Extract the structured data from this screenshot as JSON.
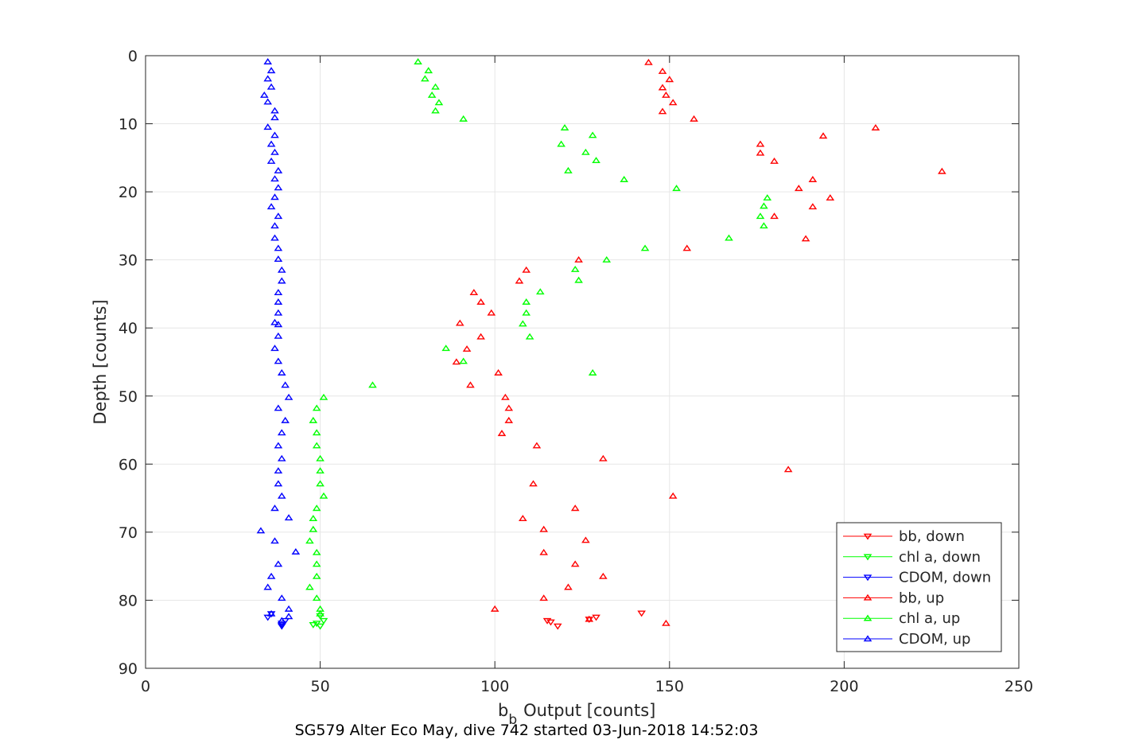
{
  "chart_data": {
    "type": "scatter",
    "title": "",
    "caption": "SG579 Alter Eco May, dive 742 started 03-Jun-2018 14:52:03",
    "xlabel_main": "b",
    "xlabel_sub": "b",
    "xlabel_rest": "Output [counts]",
    "ylabel": "Depth [counts]",
    "xlim": [
      0,
      250
    ],
    "ylim": [
      0,
      90
    ],
    "y_reversed": true,
    "grid": true,
    "legend_position": "bottom-right",
    "x_ticks": [
      "0",
      "50",
      "100",
      "150",
      "200",
      "250"
    ],
    "x_tick_values": [
      0,
      50,
      100,
      150,
      200,
      250
    ],
    "y_ticks": [
      "0",
      "10",
      "20",
      "30",
      "40",
      "50",
      "60",
      "70",
      "80",
      "90"
    ],
    "y_tick_values": [
      0,
      10,
      20,
      30,
      40,
      50,
      60,
      70,
      80,
      90
    ],
    "series": [
      {
        "name": "bb, down",
        "color": "#ff0000",
        "marker": "triangle-down",
        "points": [
          [
            115,
            83.0
          ],
          [
            116,
            83.2
          ],
          [
            118,
            83.8
          ],
          [
            129,
            82.5
          ],
          [
            142,
            81.9
          ],
          [
            127,
            82.8
          ]
        ]
      },
      {
        "name": "chl a, down",
        "color": "#00ff00",
        "marker": "triangle-down",
        "points": [
          [
            49,
            83.4
          ],
          [
            50,
            83.8
          ],
          [
            51,
            83.0
          ],
          [
            48,
            83.6
          ],
          [
            50,
            82.3
          ]
        ]
      },
      {
        "name": "CDOM, down",
        "color": "#0000ff",
        "marker": "triangle-down",
        "points": [
          [
            35,
            82.5
          ],
          [
            39,
            83.4
          ],
          [
            39,
            83.8
          ],
          [
            40,
            83.0
          ],
          [
            36,
            82.0
          ],
          [
            39,
            83.6
          ]
        ]
      },
      {
        "name": "bb, up",
        "color": "#ff0000",
        "marker": "triangle-up",
        "points": [
          [
            144,
            1.0
          ],
          [
            148,
            2.3
          ],
          [
            150,
            3.5
          ],
          [
            148,
            4.7
          ],
          [
            149,
            5.8
          ],
          [
            151,
            6.9
          ],
          [
            148,
            8.2
          ],
          [
            157,
            9.3
          ],
          [
            209,
            10.6
          ],
          [
            194,
            11.8
          ],
          [
            176,
            13.0
          ],
          [
            176,
            14.3
          ],
          [
            180,
            15.5
          ],
          [
            228,
            17.0
          ],
          [
            191,
            18.2
          ],
          [
            187,
            19.5
          ],
          [
            196,
            20.9
          ],
          [
            191,
            22.2
          ],
          [
            180,
            23.6
          ],
          [
            189,
            26.9
          ],
          [
            155,
            28.3
          ],
          [
            124,
            30.0
          ],
          [
            109,
            31.5
          ],
          [
            107,
            33.1
          ],
          [
            94,
            34.8
          ],
          [
            96,
            36.2
          ],
          [
            99,
            37.8
          ],
          [
            90,
            39.3
          ],
          [
            96,
            41.3
          ],
          [
            92,
            43.1
          ],
          [
            89,
            45.0
          ],
          [
            101,
            46.6
          ],
          [
            93,
            48.4
          ],
          [
            103,
            50.2
          ],
          [
            104,
            51.8
          ],
          [
            104,
            53.6
          ],
          [
            102,
            55.5
          ],
          [
            112,
            57.3
          ],
          [
            131,
            59.2
          ],
          [
            184,
            60.8
          ],
          [
            111,
            62.9
          ],
          [
            151,
            64.7
          ],
          [
            123,
            66.5
          ],
          [
            108,
            68.0
          ],
          [
            114,
            69.6
          ],
          [
            126,
            71.2
          ],
          [
            114,
            73.0
          ],
          [
            123,
            74.7
          ],
          [
            131,
            76.5
          ],
          [
            121,
            78.1
          ],
          [
            114,
            79.7
          ],
          [
            100,
            81.3
          ],
          [
            149,
            83.4
          ],
          [
            127,
            82.8
          ]
        ]
      },
      {
        "name": "chl a, up",
        "color": "#00ff00",
        "marker": "triangle-up",
        "points": [
          [
            78,
            0.9
          ],
          [
            81,
            2.2
          ],
          [
            80,
            3.4
          ],
          [
            83,
            4.6
          ],
          [
            82,
            5.8
          ],
          [
            84,
            6.9
          ],
          [
            83,
            8.1
          ],
          [
            91,
            9.3
          ],
          [
            120,
            10.6
          ],
          [
            128,
            11.7
          ],
          [
            119,
            13.0
          ],
          [
            126,
            14.2
          ],
          [
            129,
            15.4
          ],
          [
            121,
            16.9
          ],
          [
            137,
            18.2
          ],
          [
            152,
            19.5
          ],
          [
            178,
            20.9
          ],
          [
            177,
            22.1
          ],
          [
            176,
            23.6
          ],
          [
            177,
            25.0
          ],
          [
            167,
            26.8
          ],
          [
            143,
            28.3
          ],
          [
            132,
            30.0
          ],
          [
            123,
            31.4
          ],
          [
            124,
            33.0
          ],
          [
            113,
            34.7
          ],
          [
            109,
            36.2
          ],
          [
            109,
            37.8
          ],
          [
            108,
            39.4
          ],
          [
            110,
            41.3
          ],
          [
            86,
            43.0
          ],
          [
            91,
            44.9
          ],
          [
            128,
            46.6
          ],
          [
            65,
            48.4
          ],
          [
            51,
            50.2
          ],
          [
            49,
            51.8
          ],
          [
            48,
            53.6
          ],
          [
            49,
            55.4
          ],
          [
            49,
            57.3
          ],
          [
            50,
            59.2
          ],
          [
            50,
            61.0
          ],
          [
            50,
            62.9
          ],
          [
            51,
            64.7
          ],
          [
            49,
            66.5
          ],
          [
            48,
            68.0
          ],
          [
            48,
            69.6
          ],
          [
            47,
            71.3
          ],
          [
            49,
            73.0
          ],
          [
            49,
            74.7
          ],
          [
            49,
            76.5
          ],
          [
            47,
            78.1
          ],
          [
            49,
            79.7
          ],
          [
            50,
            81.3
          ],
          [
            50,
            82.0
          ]
        ]
      },
      {
        "name": "CDOM, up",
        "color": "#0000ff",
        "marker": "triangle-up",
        "points": [
          [
            35,
            0.9
          ],
          [
            36,
            2.2
          ],
          [
            35,
            3.4
          ],
          [
            36,
            4.6
          ],
          [
            34,
            5.8
          ],
          [
            35,
            6.8
          ],
          [
            37,
            8.1
          ],
          [
            37,
            9.1
          ],
          [
            35,
            10.5
          ],
          [
            37,
            11.7
          ],
          [
            36,
            13.0
          ],
          [
            37,
            14.2
          ],
          [
            36,
            15.5
          ],
          [
            38,
            16.9
          ],
          [
            37,
            18.1
          ],
          [
            38,
            19.4
          ],
          [
            37,
            20.8
          ],
          [
            36,
            22.2
          ],
          [
            38,
            23.6
          ],
          [
            37,
            25.0
          ],
          [
            37,
            26.8
          ],
          [
            38,
            28.3
          ],
          [
            38,
            29.9
          ],
          [
            39,
            31.5
          ],
          [
            39,
            33.1
          ],
          [
            38,
            34.8
          ],
          [
            38,
            36.2
          ],
          [
            38,
            37.8
          ],
          [
            37,
            39.2
          ],
          [
            38,
            39.5
          ],
          [
            38,
            41.2
          ],
          [
            37,
            43.0
          ],
          [
            38,
            44.9
          ],
          [
            39,
            46.6
          ],
          [
            40,
            48.4
          ],
          [
            41,
            50.2
          ],
          [
            38,
            51.8
          ],
          [
            40,
            53.6
          ],
          [
            39,
            55.4
          ],
          [
            38,
            57.3
          ],
          [
            39,
            59.2
          ],
          [
            38,
            61.0
          ],
          [
            38,
            62.9
          ],
          [
            39,
            64.7
          ],
          [
            37,
            66.5
          ],
          [
            41,
            67.9
          ],
          [
            33,
            69.8
          ],
          [
            37,
            71.3
          ],
          [
            43,
            72.9
          ],
          [
            38,
            74.7
          ],
          [
            36,
            76.5
          ],
          [
            35,
            78.1
          ],
          [
            39,
            79.7
          ],
          [
            41,
            81.3
          ],
          [
            41,
            82.4
          ],
          [
            36,
            82.0
          ],
          [
            39,
            83.0
          ]
        ]
      }
    ]
  }
}
